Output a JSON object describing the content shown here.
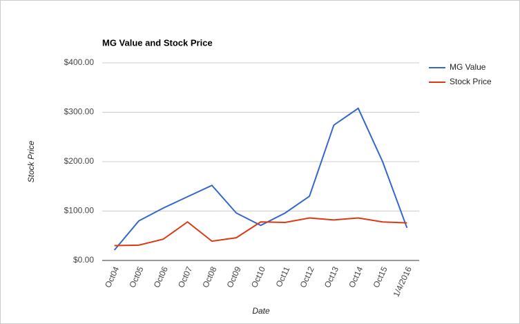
{
  "chart_data": {
    "type": "line",
    "title": "MG Value and Stock Price",
    "x_label": "Date",
    "y_label": "Stock Price",
    "categories": [
      "Oct04",
      "Oct05",
      "Oct06",
      "Oct07",
      "Oct08",
      "Oct09",
      "Oct10",
      "Oct11",
      "Oct12",
      "Oct13",
      "Oct14",
      "Oct15",
      "1/4/2016"
    ],
    "series": [
      {
        "name": "MG Value",
        "color": "#3366cc",
        "values": [
          21,
          80,
          106,
          129,
          152,
          96,
          71,
          96,
          130,
          274,
          308,
          200,
          66
        ]
      },
      {
        "name": "Stock Price",
        "color": "#dc3912",
        "values": [
          30,
          31,
          43,
          78,
          39,
          46,
          78,
          77,
          86,
          82,
          86,
          78,
          76
        ]
      }
    ],
    "ylim": [
      0,
      400
    ],
    "yticks": [
      {
        "value": 0,
        "label": "$0.00"
      },
      {
        "value": 100,
        "label": "$100.00"
      },
      {
        "value": 200,
        "label": "$200.00"
      },
      {
        "value": 300,
        "label": "$300.00"
      },
      {
        "value": 400,
        "label": "$400.00"
      }
    ],
    "grid": true,
    "legend": "right"
  }
}
